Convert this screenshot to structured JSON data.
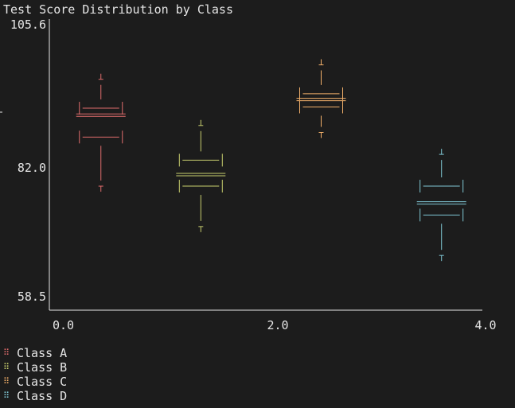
{
  "chart_data": {
    "type": "box",
    "title": "Test Score Distribution by Class",
    "xlabel": "",
    "ylabel": "",
    "xlim": [
      0,
      4
    ],
    "ylim": [
      58.5,
      105.6
    ],
    "x_ticks": [
      "0.0",
      "2.0",
      "4.0"
    ],
    "y_ticks": [
      "105.6",
      "82.0",
      "58.5"
    ],
    "legend_position": "bottom-left",
    "series": [
      {
        "name": "Class A",
        "position": 0.45,
        "color": "#e06c6c",
        "min": 77.5,
        "q1": 86.0,
        "median": 89.8,
        "q3": 91.0,
        "max": 96.0
      },
      {
        "name": "Class B",
        "position": 1.38,
        "color": "#c8cf6e",
        "min": 70.5,
        "q1": 77.5,
        "median": 79.5,
        "q3": 82.0,
        "max": 88.0
      },
      {
        "name": "Class C",
        "position": 2.5,
        "color": "#f2b06a",
        "min": 86.8,
        "q1": 91.2,
        "median": 92.5,
        "q3": 93.5,
        "max": 98.5
      },
      {
        "name": "Class D",
        "position": 3.62,
        "color": "#7fc6d4",
        "min": 65.5,
        "q1": 72.5,
        "median": 74.6,
        "q3": 77.5,
        "max": 83.0
      }
    ]
  }
}
